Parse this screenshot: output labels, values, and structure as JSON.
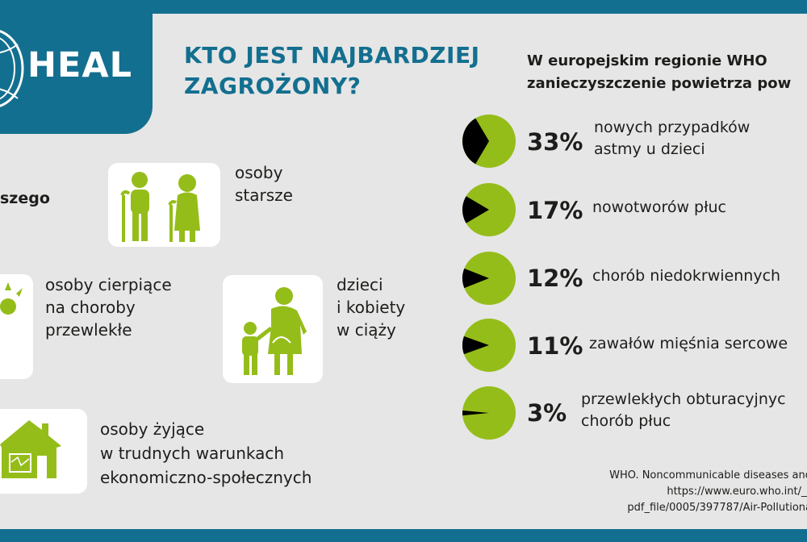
{
  "brand": {
    "logo_text": "HEAL"
  },
  "title_lines": [
    "KTO JEST NAJBARDZIEJ",
    "ZAGROŻONY?"
  ],
  "right_heading_lines": [
    "W europejskim regionie WHO",
    "zanieczyszczenie powietrza pow"
  ],
  "groups": {
    "partial_label": "szego",
    "elderly": [
      "osoby",
      "starsze"
    ],
    "chronic": [
      "osoby cierpiące",
      "na choroby",
      "przewlekłe"
    ],
    "children_pregnant": [
      "dzieci",
      "i kobiety",
      "w ciąży"
    ],
    "poverty": [
      "osoby żyjące",
      "w trudnych warunkach",
      "ekonomiczno-społecznych"
    ]
  },
  "colors": {
    "brand_blue": "#136f8f",
    "lime": "#95bd1a",
    "dark": "#000000",
    "background": "#e6e6e6"
  },
  "stats": [
    {
      "percent_label": "33%",
      "value": 33,
      "lines": [
        "nowych przypadków",
        "astmy u dzieci"
      ]
    },
    {
      "percent_label": "17%",
      "value": 17,
      "lines": [
        "nowotworów płuc"
      ]
    },
    {
      "percent_label": "12%",
      "value": 12,
      "lines": [
        "chorób niedokrwiennych"
      ]
    },
    {
      "percent_label": "11%",
      "value": 11,
      "lines": [
        "zawałów mięśnia sercowe"
      ]
    },
    {
      "percent_label": "3%",
      "value": 3,
      "lines": [
        "przewlekłych obturacyjnyc",
        "chorób płuc"
      ]
    }
  ],
  "source_lines": [
    "WHO. Noncommunicable diseases and",
    "https://www.euro.who.int/__",
    "pdf_file/0005/397787/Air-Pollutiona"
  ]
}
